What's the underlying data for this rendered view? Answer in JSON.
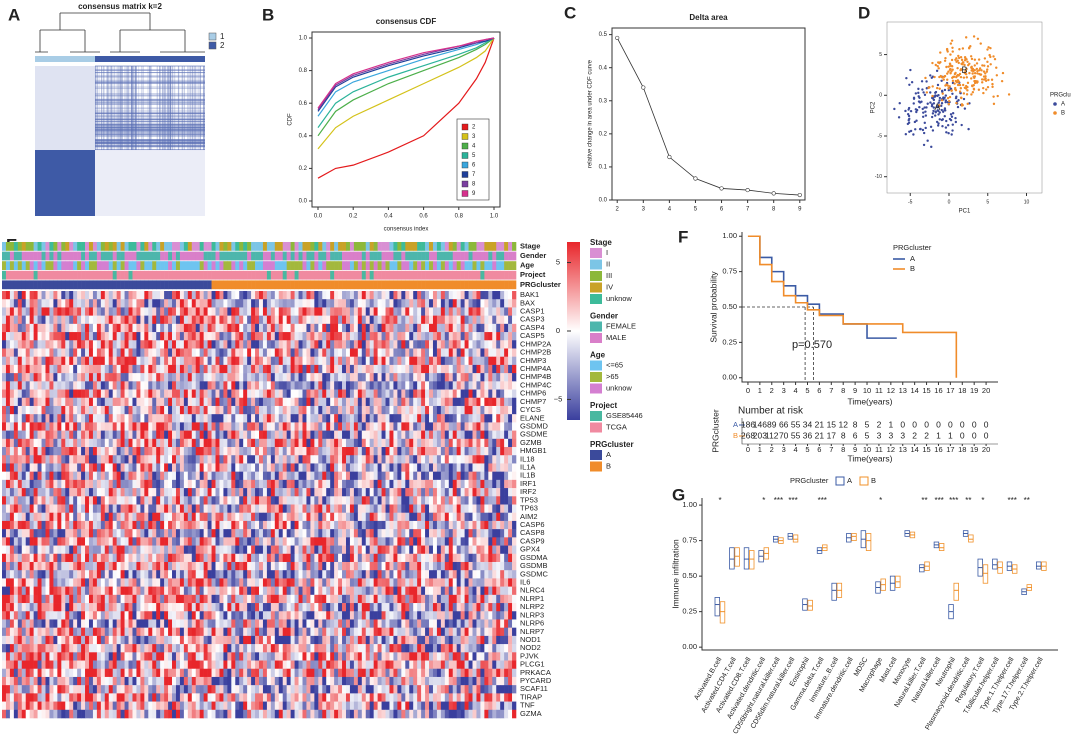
{
  "chart_data": [
    {
      "type": "consensus",
      "panel": "A",
      "title": "consensus matrix k=2",
      "legend": [
        "1",
        "2"
      ],
      "colors": [
        "#a9cde6",
        "#3e5aa6"
      ]
    },
    {
      "type": "line",
      "panel": "B",
      "title": "consensus CDF",
      "xlabel": "consensus index",
      "ylabel": "CDF",
      "x": [
        0,
        0.1,
        0.2,
        0.4,
        0.6,
        0.8,
        0.9,
        0.95,
        1
      ],
      "xlim": [
        0,
        1
      ],
      "ylim": [
        0,
        1
      ],
      "xticks": [
        {
          "value": 0,
          "label": "0.0"
        },
        0.2,
        0.4,
        0.6,
        0.8,
        {
          "value": 1,
          "label": "1.0"
        }
      ],
      "yticks": [
        {
          "value": 0,
          "label": "0.0"
        },
        0.2,
        0.4,
        0.6,
        0.8,
        {
          "value": 1,
          "label": "1.0"
        }
      ],
      "series": [
        {
          "name": "2",
          "color": "#e41a1c",
          "values": [
            0.14,
            0.2,
            0.22,
            0.3,
            0.4,
            0.6,
            0.75,
            0.85,
            1
          ]
        },
        {
          "name": "3",
          "color": "#d4c21a",
          "values": [
            0.32,
            0.45,
            0.52,
            0.62,
            0.72,
            0.82,
            0.88,
            0.92,
            1
          ]
        },
        {
          "name": "4",
          "color": "#4daf4a",
          "values": [
            0.4,
            0.55,
            0.62,
            0.72,
            0.8,
            0.88,
            0.93,
            0.96,
            1
          ]
        },
        {
          "name": "5",
          "color": "#2bb39a",
          "values": [
            0.45,
            0.6,
            0.67,
            0.76,
            0.83,
            0.9,
            0.94,
            0.97,
            1
          ]
        },
        {
          "name": "6",
          "color": "#3aa6dd",
          "values": [
            0.52,
            0.67,
            0.73,
            0.8,
            0.87,
            0.93,
            0.96,
            0.98,
            1
          ]
        },
        {
          "name": "7",
          "color": "#1f3f99",
          "values": [
            0.55,
            0.7,
            0.76,
            0.83,
            0.89,
            0.94,
            0.97,
            0.98,
            1
          ]
        },
        {
          "name": "8",
          "color": "#7b3fa0",
          "values": [
            0.56,
            0.71,
            0.77,
            0.84,
            0.9,
            0.95,
            0.97,
            0.99,
            1
          ]
        },
        {
          "name": "9",
          "color": "#d6308c",
          "values": [
            0.57,
            0.72,
            0.78,
            0.85,
            0.91,
            0.95,
            0.98,
            0.99,
            1
          ]
        }
      ]
    },
    {
      "type": "line",
      "panel": "C",
      "title": "Delta area",
      "ylabel": "relative change in area under CDF curve",
      "x": [
        2,
        3,
        4,
        5,
        6,
        7,
        8,
        9
      ],
      "values": [
        0.49,
        0.34,
        0.13,
        0.065,
        0.035,
        0.03,
        0.02,
        0.015
      ],
      "xlim": [
        1.8,
        9.2
      ],
      "ylim": [
        0,
        0.52
      ],
      "xticks": [
        2,
        3,
        4,
        5,
        6,
        7,
        8,
        9
      ],
      "yticks": [
        {
          "value": 0,
          "label": "0.0"
        },
        0.1,
        0.2,
        0.3,
        0.4,
        0.5
      ]
    },
    {
      "type": "scatter",
      "panel": "D",
      "xlabel": "PC1",
      "ylabel": "PC2",
      "legend_title": "PRGclu",
      "xlim": [
        -8,
        12
      ],
      "ylim": [
        -12,
        9
      ],
      "xticks": [
        -5,
        0,
        5,
        10
      ],
      "yticks": [
        -10,
        -5,
        0,
        5
      ],
      "series": [
        {
          "name": "A",
          "color": "#3b4a9b"
        },
        {
          "name": "B",
          "color": "#f08c2a"
        }
      ]
    },
    {
      "type": "heatmap",
      "panel": "E",
      "annotations": [
        "Stage",
        "Gender",
        "Age",
        "Project",
        "PRGcluster"
      ],
      "rows": [
        "BAK1",
        "BAX",
        "CASP1",
        "CASP3",
        "CASP4",
        "CASP5",
        "CHMP2A",
        "CHMP2B",
        "CHMP3",
        "CHMP4A",
        "CHMP4B",
        "CHMP4C",
        "CHMP6",
        "CHMP7",
        "CYCS",
        "ELANE",
        "GSDMD",
        "GSDME",
        "GZMB",
        "HMGB1",
        "IL18",
        "IL1A",
        "IL1B",
        "IRF1",
        "IRF2",
        "TP53",
        "TP63",
        "AIM2",
        "CASP6",
        "CASP8",
        "CASP9",
        "GPX4",
        "GSDMA",
        "GSDMB",
        "GSDMC",
        "IL6",
        "NLRC4",
        "NLRP1",
        "NLRP2",
        "NLRP3",
        "NLRP6",
        "NLRP7",
        "NOD1",
        "NOD2",
        "PJVK",
        "PLCG1",
        "PRKACA",
        "PYCARD",
        "SCAF11",
        "TIRAP",
        "TNF",
        "GZMA"
      ],
      "colorbar": {
        "lim": [
          -6.5,
          6.5
        ],
        "ticks": [
          5,
          0,
          {
            "value": -5,
            "label": "−5"
          }
        ],
        "colors": [
          "#3a3f9e",
          "#ffffff",
          "#e8262b"
        ]
      },
      "legend": [
        {
          "title": "Stage",
          "items": [
            "I",
            "II",
            "III",
            "IV",
            "unknow"
          ],
          "colors": [
            "#d98fd3",
            "#7cc5e6",
            "#8cb83a",
            "#c9a227",
            "#3dbb9a"
          ]
        },
        {
          "title": "Gender",
          "items": [
            "FEMALE",
            "MALE"
          ],
          "colors": [
            "#4db6ac",
            "#d97fc9"
          ]
        },
        {
          "title": "Age",
          "items": [
            "<=65",
            ">65",
            "unknow"
          ],
          "colors": [
            "#6ec4f0",
            "#a3b83d",
            "#d47fd1"
          ]
        },
        {
          "title": "Project",
          "items": [
            "GSE85446",
            "TCGA"
          ],
          "colors": [
            "#49b8a0",
            "#f08aa0"
          ]
        },
        {
          "title": "PRGcluster",
          "items": [
            "A",
            "B"
          ],
          "colors": [
            "#3b4a9b",
            "#f08c2a"
          ]
        }
      ]
    },
    {
      "type": "km",
      "panel": "F",
      "legend_title": "PRGcluster",
      "ylabel": "Survival probability",
      "xlabel": "Time(years)",
      "annotation": "p=0.570",
      "risk_title": "Number at risk",
      "risk_ylabel": "PRGcluster",
      "xlim": [
        -0.5,
        21
      ],
      "ylim": [
        -0.03,
        1.03
      ],
      "xticks": [
        0,
        1,
        2,
        3,
        4,
        5,
        6,
        7,
        8,
        9,
        10,
        11,
        12,
        13,
        14,
        15,
        16,
        17,
        18,
        19,
        20
      ],
      "yticks": [
        {
          "value": 0,
          "label": "0.00"
        },
        {
          "value": 0.25,
          "label": "0.25"
        },
        {
          "value": 0.5,
          "label": "0.50"
        },
        {
          "value": 0.75,
          "label": "0.75"
        },
        {
          "value": 1,
          "label": "1.00"
        }
      ],
      "series": [
        {
          "name": "A",
          "color": "#3b5ba5",
          "x": [
            0,
            1,
            2,
            3,
            4,
            5,
            6,
            8,
            10,
            12.5
          ],
          "values": [
            1,
            0.85,
            0.75,
            0.65,
            0.58,
            0.52,
            0.45,
            0.38,
            0.28,
            0.28
          ],
          "at_risk": [
            186,
            146,
            89,
            66,
            55,
            34,
            21,
            15,
            12,
            8,
            5,
            2,
            1,
            0,
            0,
            0,
            0,
            0,
            0,
            0,
            0
          ]
        },
        {
          "name": "B",
          "color": "#f08c2a",
          "x": [
            0,
            1,
            2,
            3,
            4,
            5,
            6,
            8,
            13,
            17.5
          ],
          "values": [
            1,
            0.8,
            0.68,
            0.58,
            0.53,
            0.48,
            0.44,
            0.38,
            0.32,
            0
          ],
          "at_risk": [
            268,
            203,
            112,
            70,
            55,
            36,
            21,
            17,
            8,
            6,
            5,
            3,
            3,
            3,
            2,
            2,
            1,
            1,
            0,
            0,
            0
          ]
        }
      ]
    },
    {
      "type": "box",
      "panel": "G",
      "legend_title": "PRGcluster",
      "ylabel": "Immune infiltration",
      "ylim": [
        -0.02,
        1.05
      ],
      "yticks": [
        {
          "value": 0,
          "label": "0.00"
        },
        {
          "value": 0.25,
          "label": "0.25"
        },
        {
          "value": 0.5,
          "label": "0.50"
        },
        {
          "value": 0.75,
          "label": "0.75"
        },
        {
          "value": 1,
          "label": "1.00"
        }
      ],
      "categories": [
        "Activated.B.cell",
        "Activated.CD4.T.cell",
        "Activated.CD8.T.cell",
        "Activated.dendritic.cell",
        "CD56bright.natural.killer.cell",
        "CD56dim.natural.killer.cell",
        "Eosinophil",
        "Gamma.delta.T.cell",
        "Immature..B.cell",
        "Immature.dendritic.cell",
        "MDSC",
        "Macrophage",
        "Mast.cell",
        "Monocyte",
        "Natural.killer.T.cell",
        "Natural.killer.cell",
        "Neutrophil",
        "Plasmacytoid.dendritic.cell",
        "Regulatory.T.cell",
        "T.follicular.helper.cell",
        "Type.1.T.helper.cell",
        "Type.17.T.helper.cell",
        "Type.2.T.helper.cell"
      ],
      "significance": [
        "*",
        null,
        null,
        "*",
        "***",
        "***",
        null,
        "***",
        null,
        null,
        null,
        "*",
        null,
        null,
        "**",
        "***",
        "***",
        "**",
        "*",
        null,
        "***",
        "**",
        null
      ],
      "series": [
        {
          "name": "A",
          "color": "#3b5ba5",
          "q1": [
            0.22,
            0.55,
            0.55,
            0.6,
            0.74,
            0.76,
            0.26,
            0.66,
            0.33,
            0.74,
            0.7,
            0.38,
            0.4,
            0.78,
            0.53,
            0.7,
            0.2,
            0.78,
            0.5,
            0.55,
            0.54,
            0.37,
            0.55
          ],
          "median": [
            0.3,
            0.62,
            0.62,
            0.64,
            0.76,
            0.78,
            0.3,
            0.68,
            0.4,
            0.77,
            0.76,
            0.42,
            0.45,
            0.8,
            0.56,
            0.72,
            0.25,
            0.8,
            0.56,
            0.58,
            0.57,
            0.39,
            0.57
          ],
          "q3": [
            0.35,
            0.7,
            0.7,
            0.68,
            0.78,
            0.8,
            0.34,
            0.7,
            0.45,
            0.8,
            0.82,
            0.46,
            0.5,
            0.82,
            0.58,
            0.74,
            0.3,
            0.82,
            0.62,
            0.62,
            0.6,
            0.41,
            0.6
          ]
        },
        {
          "name": "B",
          "color": "#f0912a",
          "q1": [
            0.17,
            0.57,
            0.55,
            0.62,
            0.73,
            0.74,
            0.26,
            0.68,
            0.35,
            0.75,
            0.68,
            0.4,
            0.42,
            0.77,
            0.54,
            0.68,
            0.33,
            0.74,
            0.45,
            0.52,
            0.52,
            0.4,
            0.54
          ],
          "median": [
            0.25,
            0.64,
            0.62,
            0.66,
            0.75,
            0.76,
            0.29,
            0.7,
            0.4,
            0.78,
            0.75,
            0.44,
            0.46,
            0.79,
            0.57,
            0.7,
            0.4,
            0.76,
            0.52,
            0.56,
            0.55,
            0.42,
            0.57
          ],
          "q3": [
            0.32,
            0.7,
            0.68,
            0.7,
            0.77,
            0.79,
            0.33,
            0.72,
            0.45,
            0.8,
            0.8,
            0.48,
            0.5,
            0.81,
            0.6,
            0.73,
            0.45,
            0.79,
            0.58,
            0.6,
            0.58,
            0.44,
            0.6
          ]
        }
      ]
    }
  ]
}
